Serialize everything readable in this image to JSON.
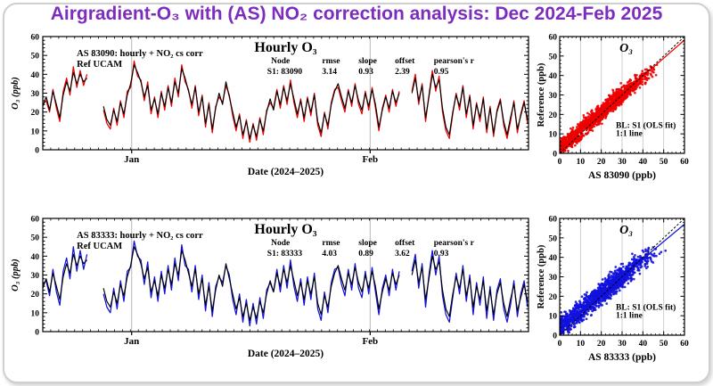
{
  "header": {
    "title": "Airgradient-O₃ with (AS) NO₂ correction analysis: Dec 2024-Feb 2025",
    "title_color": "#7D2DBE"
  },
  "chart_data": {
    "type": "line+scatter",
    "timeseries": {
      "title": "Hourly O₃",
      "ylabel": "O₃ (ppb)",
      "xlabel": "Date (2024–2025)",
      "ylim": [
        0,
        60
      ],
      "ytick_major": 10,
      "ytick_minor": 2,
      "month_ticks": [
        {
          "label": "Jan",
          "pos_pct": 18.3
        },
        {
          "label": "Feb",
          "pos_pct": 67.4
        }
      ],
      "ref_label": "Ref UCAM",
      "ref_color": "#000000",
      "grid_color": "#b8b8b8",
      "stats_headers": [
        "Node",
        "rmse",
        "slope",
        "offset",
        "pearson's r"
      ],
      "panels": [
        {
          "sensor_label": "AS 83090: hourly + NO₂ cs corr",
          "sensor_color": "#ee0000",
          "series_key": "s1",
          "stats_values": [
            "S1: 83090",
            "3.14",
            "0.93",
            "2.39",
            "0.95"
          ]
        },
        {
          "sensor_label": "AS 83333: hourly + NO₂ cs corr",
          "sensor_color": "#1212dd",
          "series_key": "s2",
          "stats_values": [
            "S1: 83333",
            "4.03",
            "0.89",
            "3.62",
            "0.93"
          ]
        }
      ],
      "segments": [
        {
          "x_start": 0.0,
          "x_step": 0.7,
          "ref": [
            23,
            28,
            21,
            31,
            24,
            17,
            29,
            36,
            31,
            41,
            35,
            40,
            36,
            38
          ],
          "s1": [
            24,
            26,
            20,
            32,
            22,
            15,
            31,
            38,
            29,
            44,
            33,
            42,
            34,
            40
          ],
          "s2": [
            25,
            27,
            19,
            33,
            21,
            14,
            32,
            39,
            28,
            45,
            32,
            43,
            33,
            41
          ]
        },
        {
          "x_start": 12.5,
          "x_step": 0.7,
          "ref": [
            23,
            16,
            13,
            21,
            15,
            25,
            19,
            29,
            35,
            45,
            41,
            36,
            28,
            34,
            21,
            27,
            19,
            30,
            23,
            33,
            25,
            36,
            30,
            43,
            38,
            31,
            24,
            33,
            20,
            28,
            14,
            24,
            11,
            22,
            30,
            24,
            36,
            28,
            20,
            12,
            18,
            8,
            15,
            6,
            13,
            7,
            16,
            10,
            20,
            27,
            21,
            31,
            24,
            33,
            26,
            35,
            27,
            19,
            26,
            17,
            27,
            20,
            29,
            15,
            9,
            19,
            13,
            24,
            31,
            35,
            28,
            22,
            31,
            25,
            34,
            26,
            21,
            30,
            23,
            32,
            24,
            12,
            21,
            28,
            22,
            31,
            25,
            30
          ],
          "s1": [
            21,
            14,
            11,
            22,
            13,
            26,
            17,
            31,
            33,
            47,
            39,
            37,
            26,
            36,
            19,
            28,
            17,
            31,
            21,
            34,
            23,
            38,
            28,
            45,
            36,
            32,
            22,
            34,
            18,
            29,
            12,
            25,
            9,
            23,
            28,
            25,
            34,
            29,
            18,
            10,
            19,
            6,
            16,
            4,
            14,
            5,
            17,
            8,
            21,
            25,
            22,
            32,
            22,
            34,
            24,
            37,
            25,
            17,
            27,
            15,
            28,
            18,
            30,
            13,
            7,
            20,
            11,
            25,
            32,
            33,
            26,
            20,
            32,
            23,
            35,
            24,
            19,
            31,
            21,
            33,
            22,
            10,
            22,
            29,
            20,
            32,
            23,
            31
          ],
          "s2": [
            20,
            13,
            10,
            23,
            12,
            27,
            16,
            32,
            34,
            48,
            40,
            38,
            25,
            37,
            18,
            29,
            16,
            32,
            20,
            35,
            22,
            39,
            27,
            46,
            35,
            33,
            21,
            35,
            17,
            30,
            11,
            26,
            8,
            24,
            29,
            26,
            35,
            30,
            17,
            9,
            20,
            5,
            17,
            3,
            15,
            4,
            18,
            7,
            22,
            26,
            21,
            33,
            21,
            35,
            23,
            38,
            24,
            16,
            28,
            14,
            29,
            17,
            31,
            12,
            6,
            21,
            10,
            26,
            33,
            34,
            25,
            19,
            33,
            22,
            36,
            23,
            18,
            32,
            20,
            34,
            21,
            9,
            23,
            30,
            19,
            33,
            22,
            32
          ]
        },
        {
          "x_start": 76.0,
          "x_step": 0.7,
          "ref": [
            30,
            38,
            26,
            34,
            17,
            28,
            40,
            33,
            37,
            22,
            12,
            8,
            20,
            29,
            23,
            33,
            19,
            28,
            13,
            24,
            17,
            27,
            11,
            22,
            9,
            20,
            26,
            15,
            8,
            17,
            25,
            11,
            18,
            25,
            16
          ],
          "s1": [
            31,
            40,
            24,
            35,
            15,
            29,
            42,
            31,
            39,
            20,
            10,
            6,
            19,
            30,
            21,
            34,
            17,
            29,
            11,
            25,
            15,
            28,
            9,
            23,
            7,
            21,
            27,
            13,
            6,
            15,
            26,
            9,
            19,
            26,
            14
          ],
          "s2": [
            32,
            41,
            23,
            36,
            13,
            30,
            43,
            30,
            40,
            19,
            9,
            5,
            18,
            31,
            20,
            35,
            16,
            30,
            9,
            26,
            14,
            29,
            7,
            24,
            6,
            22,
            28,
            12,
            5,
            14,
            27,
            8,
            20,
            27,
            13
          ]
        }
      ]
    },
    "scatter": {
      "title": "O₃",
      "ylabel": "Reference (ppb)",
      "xlim": [
        0,
        60
      ],
      "ylim": [
        0,
        60
      ],
      "tick_major": 10,
      "tick_minor": 2,
      "grid_color": "#c9c9c9",
      "one_to_one_label": "1:1 line",
      "panels": [
        {
          "xlabel": "AS 83090 (ppb)",
          "color": "#ee0000",
          "fit_label": "BL: S1 (OLS fit)",
          "slope": 0.93,
          "offset": 2.39,
          "rmse": 3.14,
          "n_points": 1400,
          "seed": 7
        },
        {
          "xlabel": "AS 83333 (ppb)",
          "color": "#1212dd",
          "fit_label": "BL: S1 (OLS fit)",
          "slope": 0.89,
          "offset": 3.62,
          "rmse": 4.03,
          "n_points": 1400,
          "seed": 13
        }
      ]
    }
  }
}
